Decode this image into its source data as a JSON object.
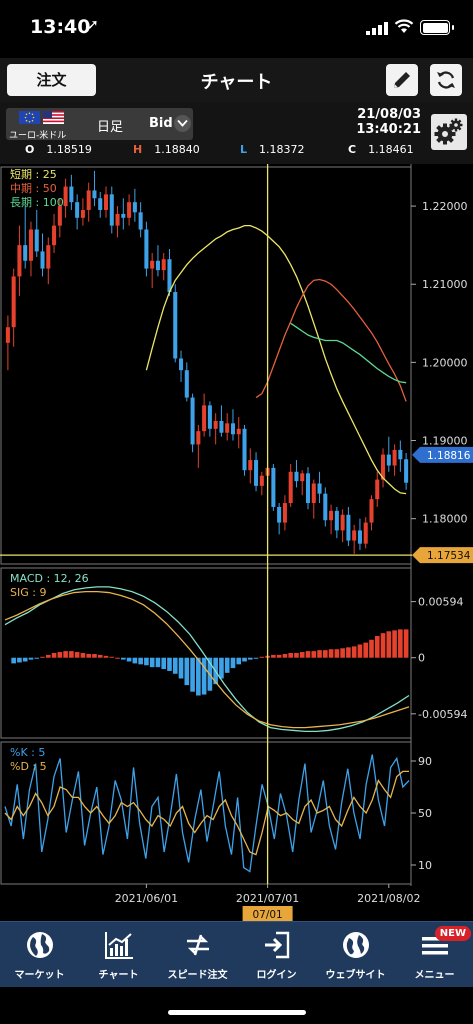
{
  "status_bar": {
    "time": "13:40",
    "location_glyph": "➚"
  },
  "header": {
    "order_label": "注文",
    "title": "チャート",
    "edit_icon": "pencil-icon",
    "refresh_icon": "refresh-icon"
  },
  "instrument": {
    "pair": "ユーロ-米ドル",
    "period": "日足",
    "price_type": "Bid",
    "date": "21/08/03",
    "time": "13:40:21",
    "open_label": "O",
    "open": "1.18519",
    "high_label": "H",
    "high": "1.18840",
    "low_label": "L",
    "low": "1.18372",
    "close_label": "C",
    "close": "1.18461"
  },
  "colors": {
    "up": "#e5412d",
    "down": "#3ea2e9",
    "short_ma": "#ece666",
    "mid_ma": "#e5603d",
    "long_ma": "#5dd893",
    "macd": "#85e0c6",
    "signal": "#e8b44d",
    "k": "#3ea2e9",
    "d": "#e8b44d",
    "crosshair": "#e9e666",
    "tab_bg": "#203a5e"
  },
  "chart_data": [
    {
      "type": "candlestick",
      "name": "price",
      "legend": [
        "短期 : 25",
        "中期 : 50",
        "長期 : 100"
      ],
      "ylim": [
        1.1742,
        1.225
      ],
      "y_ticks": [
        "1.22000",
        "1.21000",
        "1.20000",
        "1.19000",
        "1.18000"
      ],
      "y_tick_values": [
        1.22,
        1.21,
        1.2,
        1.19,
        1.18
      ],
      "current_price_label": "1.18816",
      "current_price": 1.18816,
      "crosshair_price_label": "1.17534",
      "crosshair_price": 1.17534,
      "candles": [
        [
          1.2025,
          1.206,
          1.199,
          1.2045
        ],
        [
          1.2045,
          1.212,
          1.202,
          1.211
        ],
        [
          1.211,
          1.2175,
          1.2085,
          1.215
        ],
        [
          1.215,
          1.22,
          1.212,
          1.213
        ],
        [
          1.213,
          1.218,
          1.211,
          1.217
        ],
        [
          1.217,
          1.2195,
          1.2135,
          1.2142
        ],
        [
          1.2142,
          1.2165,
          1.211,
          1.212
        ],
        [
          1.212,
          1.216,
          1.21,
          1.215
        ],
        [
          1.215,
          1.219,
          1.214,
          1.2175
        ],
        [
          1.2175,
          1.221,
          1.216,
          1.22
        ],
        [
          1.22,
          1.2235,
          1.2185,
          1.2225
        ],
        [
          1.2225,
          1.224,
          1.2195,
          1.2205
        ],
        [
          1.2205,
          1.2215,
          1.217,
          1.2185
        ],
        [
          1.2185,
          1.221,
          1.2175,
          1.2195
        ],
        [
          1.2195,
          1.223,
          1.218,
          1.222
        ],
        [
          1.222,
          1.2245,
          1.22,
          1.221
        ],
        [
          1.221,
          1.2218,
          1.2185,
          1.2195
        ],
        [
          1.2195,
          1.2225,
          1.2185,
          1.2215
        ],
        [
          1.2215,
          1.2225,
          1.2165,
          1.2175
        ],
        [
          1.2175,
          1.22,
          1.216,
          1.219
        ],
        [
          1.219,
          1.221,
          1.217,
          1.2185
        ],
        [
          1.2185,
          1.2215,
          1.2175,
          1.2205
        ],
        [
          1.2205,
          1.2222,
          1.218,
          1.2192
        ],
        [
          1.2192,
          1.2205,
          1.216,
          1.217
        ],
        [
          1.217,
          1.218,
          1.211,
          1.212
        ],
        [
          1.212,
          1.214,
          1.2095,
          1.213
        ],
        [
          1.213,
          1.215,
          1.211,
          1.2118
        ],
        [
          1.2118,
          1.214,
          1.2105,
          1.2132
        ],
        [
          1.2132,
          1.2145,
          1.2085,
          1.209
        ],
        [
          1.209,
          1.21,
          1.2,
          1.2005
        ],
        [
          1.2005,
          1.2015,
          1.1975,
          1.199
        ],
        [
          1.199,
          1.2,
          1.195,
          1.1955
        ],
        [
          1.1955,
          1.196,
          1.1885,
          1.1895
        ],
        [
          1.1895,
          1.192,
          1.1865,
          1.1912
        ],
        [
          1.1912,
          1.196,
          1.1905,
          1.1945
        ],
        [
          1.1945,
          1.195,
          1.1905,
          1.1915
        ],
        [
          1.1915,
          1.1935,
          1.1895,
          1.1925
        ],
        [
          1.1925,
          1.1945,
          1.1905,
          1.191
        ],
        [
          1.191,
          1.1935,
          1.19,
          1.1922
        ],
        [
          1.1922,
          1.194,
          1.19,
          1.1908
        ],
        [
          1.1908,
          1.193,
          1.189,
          1.1915
        ],
        [
          1.1915,
          1.192,
          1.1855,
          1.1862
        ],
        [
          1.1862,
          1.189,
          1.1845,
          1.1875
        ],
        [
          1.1875,
          1.1885,
          1.1835,
          1.1842
        ],
        [
          1.1842,
          1.186,
          1.183,
          1.1855
        ],
        [
          1.1855,
          1.1875,
          1.184,
          1.1865
        ],
        [
          1.1865,
          1.187,
          1.181,
          1.1815
        ],
        [
          1.1815,
          1.182,
          1.178,
          1.1795
        ],
        [
          1.1795,
          1.183,
          1.1785,
          1.182
        ],
        [
          1.182,
          1.187,
          1.1815,
          1.186
        ],
        [
          1.186,
          1.1875,
          1.184,
          1.1848
        ],
        [
          1.1848,
          1.1862,
          1.183,
          1.1858
        ],
        [
          1.1858,
          1.1866,
          1.1812,
          1.182
        ],
        [
          1.182,
          1.185,
          1.18,
          1.1845
        ],
        [
          1.1845,
          1.186,
          1.182,
          1.1832
        ],
        [
          1.1832,
          1.184,
          1.179,
          1.1798
        ],
        [
          1.1798,
          1.1818,
          1.178,
          1.181
        ],
        [
          1.181,
          1.1815,
          1.1775,
          1.1785
        ],
        [
          1.1785,
          1.1812,
          1.177,
          1.1805
        ],
        [
          1.1805,
          1.1815,
          1.1765,
          1.1772
        ],
        [
          1.1772,
          1.1792,
          1.1755,
          1.1785
        ],
        [
          1.1785,
          1.18,
          1.176,
          1.1768
        ],
        [
          1.1768,
          1.1802,
          1.1762,
          1.1795
        ],
        [
          1.1795,
          1.183,
          1.1785,
          1.1825
        ],
        [
          1.1825,
          1.186,
          1.1815,
          1.185
        ],
        [
          1.185,
          1.189,
          1.184,
          1.1882
        ],
        [
          1.1882,
          1.1905,
          1.186,
          1.1868
        ],
        [
          1.1868,
          1.1895,
          1.1855,
          1.1888
        ],
        [
          1.1888,
          1.19,
          1.186,
          1.1876
        ],
        [
          1.1876,
          1.1884,
          1.1837,
          1.1846
        ]
      ],
      "moving_averages": [
        {
          "name": "短期 : 25",
          "values": [
            1.199,
            1.2018,
            1.2045,
            1.207,
            1.209,
            1.2105,
            1.2115,
            1.2125,
            1.2133,
            1.214,
            1.2146,
            1.2152,
            1.2158,
            1.2162,
            1.2167,
            1.217,
            1.2172,
            1.2175,
            1.2175,
            1.2172,
            1.2168,
            1.2162,
            1.2155,
            1.2148,
            1.2138,
            1.2125,
            1.211,
            1.2092,
            1.2072,
            1.205,
            1.2028,
            1.2005,
            1.1985,
            1.1966,
            1.195,
            1.1935,
            1.192,
            1.1905,
            1.189,
            1.1875,
            1.1862,
            1.1852,
            1.1845,
            1.1838,
            1.1833,
            1.1832
          ]
        },
        {
          "name": "中期 : 50",
          "values": [
            1.1955,
            1.196,
            1.1975,
            1.1995,
            1.2015,
            1.2035,
            1.2052,
            1.207,
            1.2085,
            1.2098,
            1.2105,
            1.2106,
            1.2104,
            1.21,
            1.2093,
            1.2085,
            1.2077,
            1.2068,
            1.2058,
            1.2048,
            1.2038,
            1.2026,
            1.2012,
            1.1998,
            1.1985,
            1.197,
            1.195
          ]
        },
        {
          "name": "長期 : 100",
          "values": [
            1.205,
            1.2045,
            1.204,
            1.2035,
            1.2032,
            1.203,
            1.2028,
            1.2028,
            1.2028,
            1.2025,
            1.202,
            1.2015,
            1.201,
            1.2004,
            1.1998,
            1.1992,
            1.1987,
            1.1982,
            1.1978,
            1.1975,
            1.1974
          ]
        }
      ]
    },
    {
      "type": "bar",
      "name": "MACD",
      "legend": [
        "MACD : 12, 26",
        "SIG : 9"
      ],
      "ylim": [
        -0.0085,
        0.0095
      ],
      "y_ticks": [
        "0.00594",
        "0",
        "-0.00594"
      ],
      "y_tick_values": [
        0.00594,
        0,
        -0.00594
      ],
      "histogram": [
        -0.0006,
        -0.0005,
        -0.0004,
        -0.0002,
        -0.0001,
        0.0001,
        0.0003,
        0.0005,
        0.0006,
        0.0007,
        0.0007,
        0.0006,
        0.0005,
        0.0004,
        0.0004,
        0.0003,
        0.0002,
        0.0001,
        0.0,
        -0.0002,
        -0.0004,
        -0.0006,
        -0.0007,
        -0.0008,
        -0.001,
        -0.001,
        -0.0012,
        -0.0014,
        -0.0017,
        -0.0022,
        -0.0029,
        -0.0036,
        -0.004,
        -0.0039,
        -0.0035,
        -0.0028,
        -0.0022,
        -0.0016,
        -0.0011,
        -0.0007,
        -0.0004,
        -0.0002,
        -0.0001,
        0.0001,
        0.0002,
        0.0003,
        0.0003,
        0.0004,
        0.0005,
        0.0005,
        0.0006,
        0.0007,
        0.0007,
        0.0008,
        0.0008,
        0.0009,
        0.0009,
        0.001,
        0.0011,
        0.0012,
        0.0014,
        0.0016,
        0.0019,
        0.0023,
        0.0026,
        0.0028,
        0.0029,
        0.003,
        0.003
      ],
      "macd": [
        0.0035,
        0.0042,
        0.0048,
        0.0056,
        0.0062,
        0.0068,
        0.0072,
        0.0074,
        0.0075,
        0.0075,
        0.0073,
        0.007,
        0.0065,
        0.0058,
        0.0049,
        0.0038,
        0.0025,
        0.0008,
        -0.001,
        -0.0028,
        -0.0044,
        -0.0058,
        -0.0068,
        -0.0074,
        -0.0076,
        -0.0077,
        -0.0078,
        -0.0078,
        -0.0077,
        -0.0075,
        -0.0072,
        -0.0068,
        -0.0062,
        -0.0055,
        -0.0048,
        -0.004
      ],
      "signal": [
        0.004,
        0.0045,
        0.0051,
        0.0057,
        0.0062,
        0.0066,
        0.0069,
        0.007,
        0.007,
        0.0069,
        0.0066,
        0.0062,
        0.0056,
        0.0047,
        0.0036,
        0.0023,
        0.0009,
        -0.0006,
        -0.0022,
        -0.0037,
        -0.005,
        -0.006,
        -0.0067,
        -0.0071,
        -0.0073,
        -0.0074,
        -0.0074,
        -0.0073,
        -0.0072,
        -0.0071,
        -0.0069,
        -0.0067,
        -0.0064,
        -0.006,
        -0.0056,
        -0.0052
      ]
    },
    {
      "type": "line",
      "name": "Stochastics",
      "legend": [
        "%K : 5",
        "%D : 5"
      ],
      "ylim": [
        0,
        100
      ],
      "y_ticks": [
        "90",
        "50",
        "10"
      ],
      "y_tick_values": [
        90,
        50,
        10
      ],
      "k": [
        55,
        40,
        72,
        30,
        68,
        88,
        20,
        45,
        78,
        92,
        35,
        60,
        82,
        25,
        50,
        70,
        18,
        40,
        75,
        60,
        30,
        85,
        42,
        15,
        55,
        62,
        20,
        48,
        80,
        35,
        12,
        45,
        68,
        28,
        55,
        82,
        40,
        18,
        62,
        8,
        5,
        40,
        72,
        55,
        30,
        65,
        48,
        20,
        60,
        88,
        35,
        52,
        75,
        40,
        22,
        58,
        84,
        50,
        30,
        72,
        95,
        60,
        40,
        85,
        92,
        70,
        75
      ],
      "d": [
        50,
        45,
        55,
        48,
        55,
        65,
        58,
        48,
        55,
        70,
        68,
        62,
        62,
        55,
        50,
        55,
        48,
        42,
        48,
        58,
        55,
        58,
        52,
        45,
        40,
        48,
        45,
        40,
        50,
        55,
        42,
        35,
        42,
        48,
        45,
        55,
        60,
        48,
        40,
        30,
        20,
        18,
        35,
        55,
        52,
        48,
        50,
        45,
        42,
        55,
        60,
        50,
        52,
        55,
        45,
        40,
        52,
        62,
        55,
        50,
        60,
        75,
        68,
        62,
        78,
        82,
        82
      ],
      "x_ticks": [
        "2021/06/01",
        "2021/07/01",
        "2021/08/02"
      ],
      "x_tick_index": [
        24,
        45,
        66
      ],
      "crosshair_date_label": "07/01",
      "crosshair_index": 45
    }
  ],
  "tabs": [
    {
      "label": "マーケット",
      "icon": "globe-icon"
    },
    {
      "label": "チャート",
      "icon": "chart-icon"
    },
    {
      "label": "スピード注文",
      "icon": "speed-order-icon"
    },
    {
      "label": "ログイン",
      "icon": "login-icon"
    },
    {
      "label": "ウェブサイト",
      "icon": "website-icon"
    },
    {
      "label": "メニュー",
      "icon": "menu-icon",
      "badge": "NEW"
    }
  ]
}
